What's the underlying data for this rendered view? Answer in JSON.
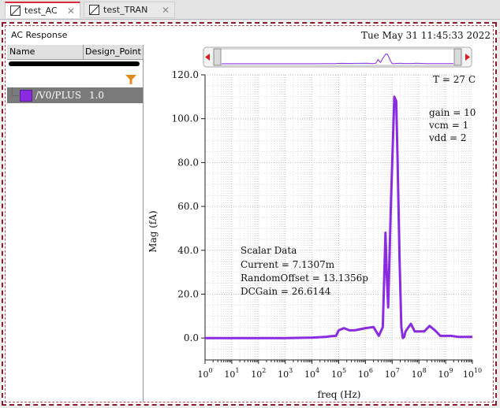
{
  "tabs": [
    {
      "label": "test_AC",
      "active": true
    },
    {
      "label": "test_TRAN",
      "active": false
    }
  ],
  "window": {
    "title": "AC Response",
    "date": "Tue May 31 11:45:33 2022",
    "date_suffix": "1"
  },
  "browser": {
    "col_name": "Name",
    "col_design_point": "Design_Point",
    "trace_name": "/V0/PLUS",
    "trace_value": "1.0",
    "trace_color": "#8a2be2"
  },
  "plot": {
    "temperature": "T = 27 C",
    "params": [
      "gain = 10",
      "vcm = 1",
      "vdd = 2"
    ],
    "scalar_title": "Scalar Data",
    "scalar_lines": [
      "Current = 7.1307m",
      "RandomOffset = 13.1356p",
      "DCGain = 26.6144"
    ]
  },
  "chart_data": {
    "type": "line",
    "xlabel": "freq (Hz)",
    "ylabel": "Mag (fA)",
    "xscale": "log",
    "xlim": [
      1,
      10000000000
    ],
    "ylim": [
      -10,
      120
    ],
    "xticks": [
      1,
      10,
      100,
      1000,
      10000,
      100000,
      1000000,
      10000000,
      100000000,
      1000000000,
      10000000000
    ],
    "yticks": [
      0,
      20,
      40,
      60,
      80,
      100,
      120
    ],
    "ytick_labels": [
      "0.0",
      "20.0",
      "40.0",
      "60.0",
      "80.0",
      "100.0",
      "120.0"
    ],
    "grid": true,
    "series": [
      {
        "name": "/V0/PLUS",
        "color": "#8a2be2",
        "x": [
          1,
          10,
          100,
          1000,
          10000,
          31600,
          50000,
          79000,
          100000,
          158000,
          251000,
          398000,
          631000,
          1000000,
          2000000,
          3160000,
          4470000,
          5620000,
          6300000,
          7080000,
          8900000,
          12000000,
          14100000,
          16000000,
          19000000,
          22000000,
          25000000,
          28000000,
          31600000,
          50000000,
          70000000,
          100000000,
          158000000,
          251000000,
          400000000,
          631000000,
          1000000000,
          1580000000,
          3160000000,
          10000000000
        ],
        "y": [
          0,
          0,
          0,
          0,
          0.2,
          0.5,
          0.8,
          1,
          3.5,
          4.5,
          3.5,
          3.5,
          4,
          4.5,
          5,
          1,
          5,
          48,
          28,
          14,
          60,
          110,
          108,
          80,
          35,
          5,
          0,
          0.5,
          3,
          6.5,
          3,
          3,
          3,
          5.5,
          3.5,
          1,
          1,
          1,
          0.5,
          0.5
        ]
      }
    ]
  }
}
